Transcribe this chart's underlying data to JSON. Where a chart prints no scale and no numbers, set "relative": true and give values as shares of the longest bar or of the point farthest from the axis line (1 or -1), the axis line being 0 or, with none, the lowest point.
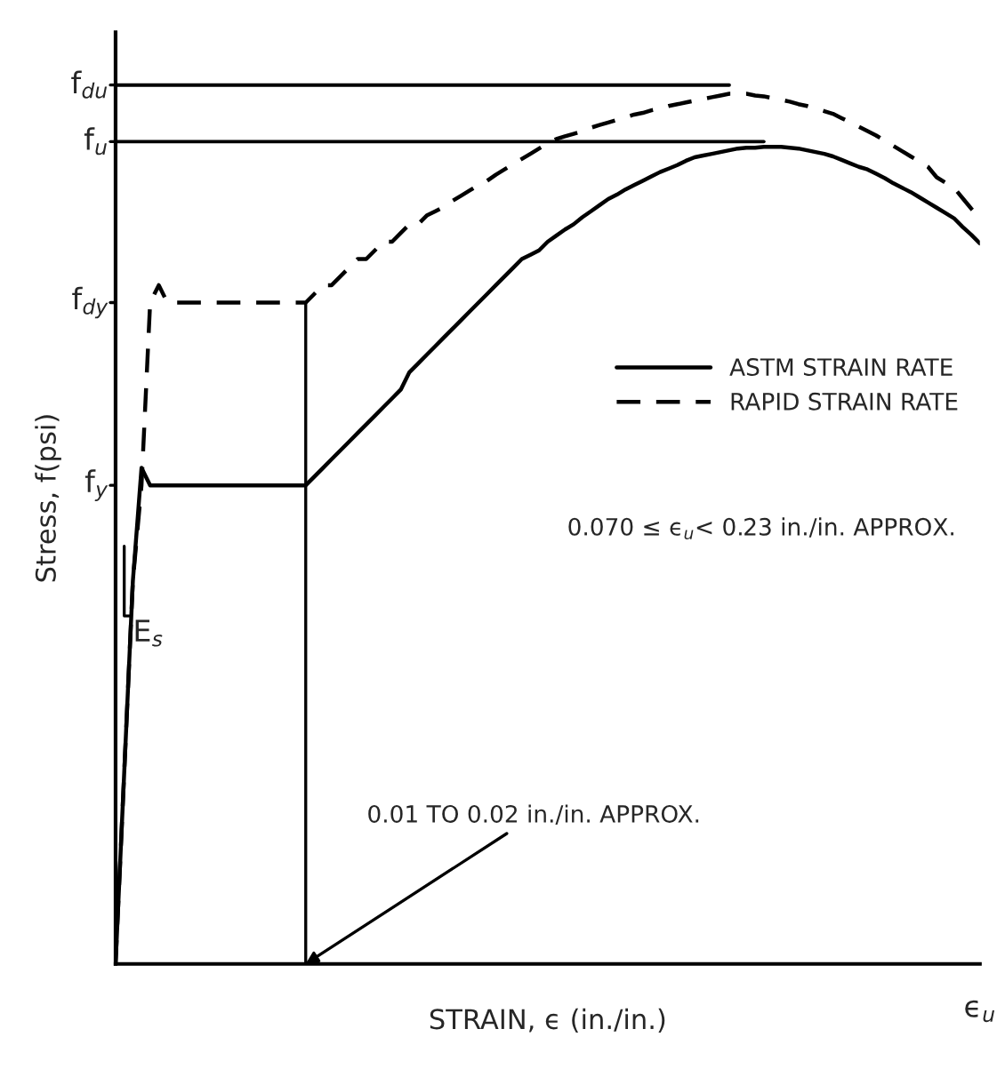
{
  "chart_data": {
    "type": "line",
    "relative": true,
    "xlabel": "STRAIN, ϵ (in./in.)",
    "ylabel": "Stress, f(psi)",
    "categories": [
      null,
      null,
      null,
      null,
      null,
      null,
      null,
      null,
      null,
      null,
      null,
      null,
      null,
      null,
      null,
      null,
      null,
      null,
      null,
      null,
      null,
      null,
      null,
      null,
      null,
      null,
      null,
      null,
      null,
      null,
      null,
      null,
      null,
      null,
      null,
      null,
      null,
      null,
      null,
      null,
      null,
      null,
      null,
      null,
      null,
      null,
      null,
      null,
      null,
      null,
      null,
      null,
      null,
      null,
      null,
      null,
      null,
      null,
      null,
      null,
      null,
      null,
      null,
      null,
      null,
      null,
      null,
      null,
      null,
      null,
      null,
      null,
      null,
      null,
      null,
      null,
      null,
      null,
      null,
      null,
      null,
      null,
      null,
      null,
      null,
      null,
      null,
      null,
      null,
      null,
      null,
      null,
      null,
      null,
      null,
      null,
      null,
      null,
      null,
      null,
      null
    ],
    "series": [
      {
        "name": "ASTM STRAIN RATE",
        "color": "#000000",
        "line_style": "solid",
        "values": [
          0,
          0.22,
          0.44,
          0.57,
          0.55,
          0.55,
          0.55,
          0.55,
          0.55,
          0.55,
          0.55,
          0.55,
          0.55,
          0.55,
          0.55,
          0.55,
          0.55,
          0.55,
          0.55,
          0.55,
          0.55,
          0.55,
          0.55,
          0.56,
          0.57,
          0.58,
          0.59,
          0.6,
          0.61,
          0.62,
          0.63,
          0.64,
          0.65,
          0.66,
          0.68,
          0.69,
          0.7,
          0.71,
          0.72,
          0.73,
          0.74,
          0.75,
          0.76,
          0.77,
          0.78,
          0.79,
          0.8,
          0.81,
          0.815,
          0.82,
          0.83,
          0.837,
          0.844,
          0.85,
          0.858,
          0.865,
          0.872,
          0.879,
          0.884,
          0.89,
          0.895,
          0.9,
          0.905,
          0.91,
          0.914,
          0.918,
          0.923,
          0.927,
          0.929,
          0.931,
          0.933,
          0.935,
          0.937,
          0.938,
          0.938,
          0.939,
          0.939,
          0.939,
          0.938,
          0.937,
          0.935,
          0.933,
          0.931,
          0.928,
          0.924,
          0.92,
          0.916,
          0.913,
          0.908,
          0.903,
          0.897,
          0.892,
          0.887,
          0.881,
          0.875,
          0.869,
          0.863,
          0.857,
          0.847,
          0.838,
          0.828
        ]
      },
      {
        "name": "RAPID STRAIN RATE",
        "color": "#000000",
        "line_style": "dashed",
        "values": [
          0,
          0.22,
          0.44,
          0.55,
          0.76,
          0.78,
          0.76,
          0.76,
          0.76,
          0.76,
          0.76,
          0.76,
          0.76,
          0.76,
          0.76,
          0.76,
          0.76,
          0.76,
          0.76,
          0.76,
          0.76,
          0.76,
          0.76,
          0.77,
          0.78,
          0.78,
          0.79,
          0.8,
          0.81,
          0.81,
          0.82,
          0.83,
          0.83,
          0.84,
          0.85,
          0.85,
          0.86,
          0.865,
          0.87,
          0.877,
          0.883,
          0.889,
          0.895,
          0.9,
          0.907,
          0.913,
          0.919,
          0.925,
          0.931,
          0.937,
          0.943,
          0.948,
          0.951,
          0.954,
          0.957,
          0.961,
          0.964,
          0.967,
          0.97,
          0.973,
          0.976,
          0.978,
          0.981,
          0.983,
          0.986,
          0.988,
          0.99,
          0.992,
          0.994,
          0.996,
          0.998,
          1,
          1,
          1,
          0.998,
          0.997,
          0.995,
          0.993,
          0.991,
          0.988,
          0.986,
          0.983,
          0.98,
          0.977,
          0.972,
          0.967,
          0.962,
          0.957,
          0.952,
          0.946,
          0.94,
          0.934,
          0.928,
          0.922,
          0.916,
          0.904,
          0.898,
          0.892,
          0.88,
          0.868,
          0.857
        ]
      }
    ],
    "ref_lines": [
      {
        "axis": "y",
        "value": 1.01,
        "label": "f$_{du}$"
      },
      {
        "axis": "y",
        "value": 0.945,
        "label": "f$_{u}$"
      }
    ],
    "annotations": [
      "f$_{dy}$",
      "f$_{y}$",
      "E$_{s}$",
      "0.070 ≤ ϵ$_{u}$< 0.23 in./in. APPROX.",
      "ϵ$_{u}$",
      "0.01 TO 0.02 in./in. APPROX."
    ],
    "legend": "center right"
  }
}
